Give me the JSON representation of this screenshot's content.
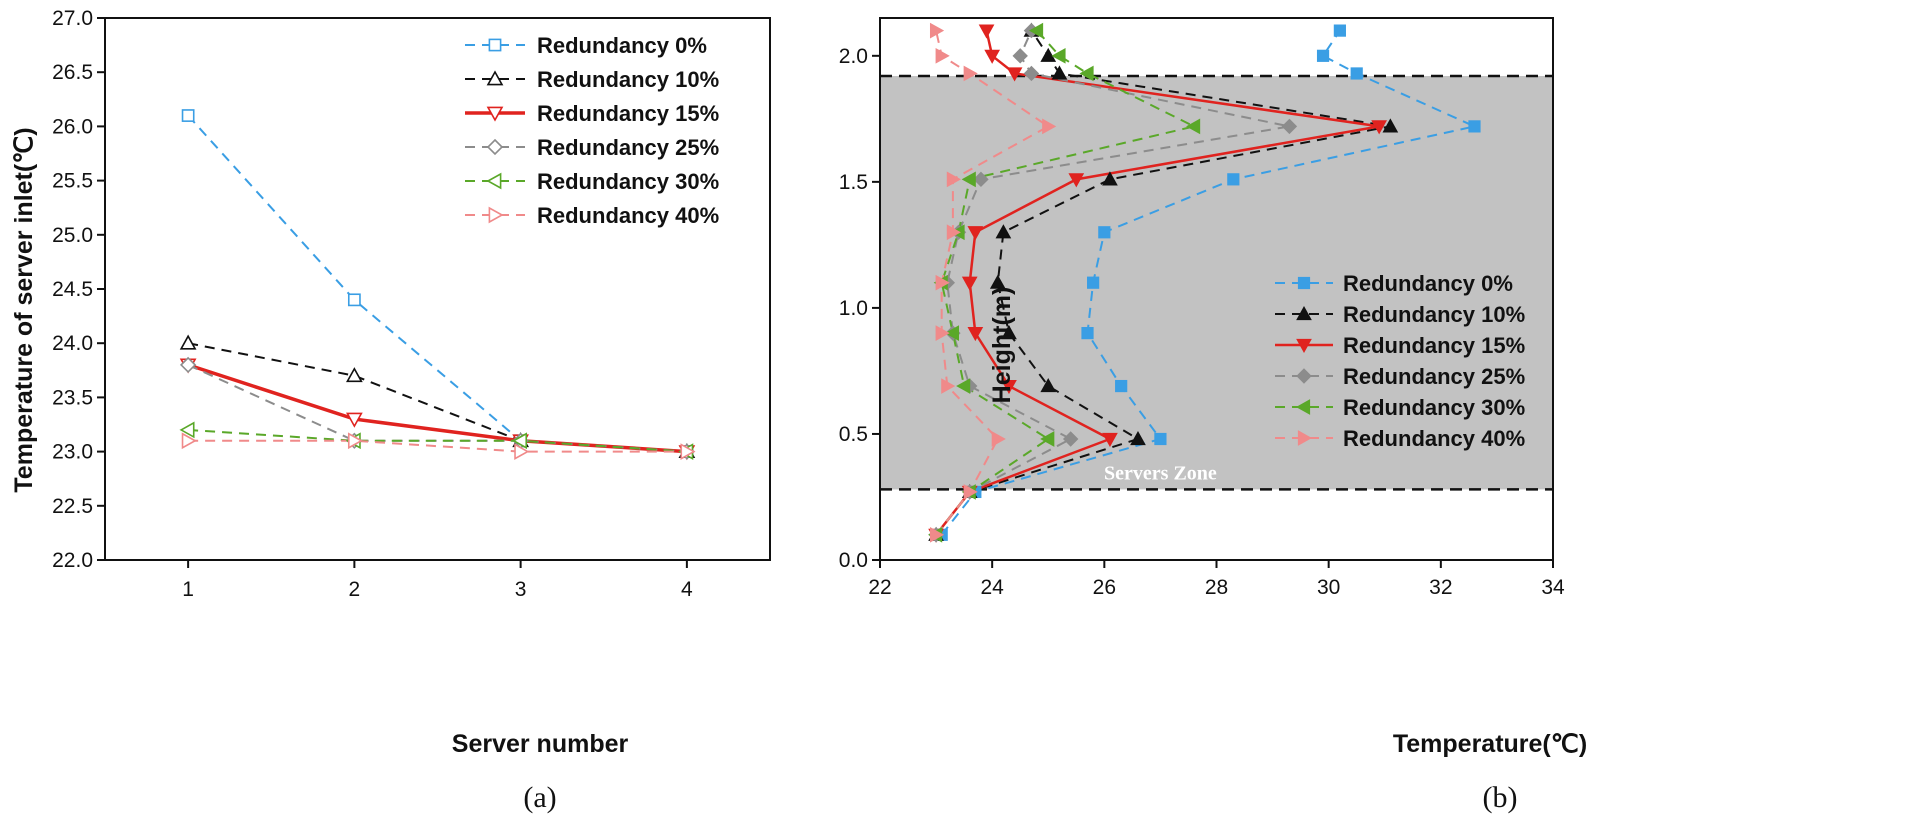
{
  "chart_data": [
    {
      "type": "line",
      "caption": "(a)",
      "xlabel": "Server number",
      "ylabel": "Temperature of server inlet(℃)",
      "xlim": [
        0.5,
        4.5
      ],
      "ylim": [
        22.0,
        27.0
      ],
      "xticks": [
        "1",
        "2",
        "3",
        "4"
      ],
      "yticks": [
        "22.0",
        "22.5",
        "23.0",
        "23.5",
        "24.0",
        "24.5",
        "25.0",
        "25.5",
        "26.0",
        "26.5",
        "27.0"
      ],
      "legend_position": "top-right",
      "x": [
        1,
        2,
        3,
        4
      ],
      "series": [
        {
          "name": "Redundancy 0%",
          "color": "#3a9ee4",
          "marker": "square-open",
          "style": "dashed",
          "values": [
            26.1,
            24.4,
            23.1,
            23.0
          ]
        },
        {
          "name": "Redundancy 10%",
          "color": "#111111",
          "marker": "triangle-up-open",
          "style": "dashed",
          "values": [
            24.0,
            23.7,
            23.1,
            23.0
          ]
        },
        {
          "name": "Redundancy 15%",
          "color": "#e0231f",
          "marker": "triangle-down-open",
          "style": "solid",
          "values": [
            23.8,
            23.3,
            23.1,
            23.0
          ]
        },
        {
          "name": "Redundancy 25%",
          "color": "#8c8c8c",
          "marker": "diamond-open",
          "style": "dashed",
          "values": [
            23.8,
            23.1,
            23.1,
            23.0
          ]
        },
        {
          "name": "Redundancy 30%",
          "color": "#5aa829",
          "marker": "triangle-left-open",
          "style": "dashed",
          "values": [
            23.2,
            23.1,
            23.1,
            23.0
          ]
        },
        {
          "name": "Redundancy 40%",
          "color": "#f08a8a",
          "marker": "triangle-right-open",
          "style": "dashed",
          "values": [
            23.1,
            23.1,
            23.0,
            23.0
          ]
        }
      ]
    },
    {
      "type": "line",
      "caption": "(b)",
      "xlabel": "Temperature(℃)",
      "ylabel": "Height(m)",
      "xlim": [
        22,
        34
      ],
      "ylim": [
        0.0,
        2.15
      ],
      "xticks": [
        "22",
        "24",
        "26",
        "28",
        "30",
        "32",
        "34"
      ],
      "yticks": [
        "0.0",
        "0.5",
        "1.0",
        "1.5",
        "2.0"
      ],
      "legend_position": "bottom-right",
      "zone_label": "Servers Zone",
      "zone_range": [
        0.28,
        1.92
      ],
      "series": [
        {
          "name": "Redundancy 0%",
          "color": "#3a9ee4",
          "marker": "square-filled",
          "style": "dashed",
          "x": [
            23.1,
            23.7,
            27.0,
            26.3,
            25.7,
            25.8,
            26.0,
            28.3,
            32.6,
            30.5,
            29.9,
            30.2
          ],
          "y": [
            0.1,
            0.27,
            0.48,
            0.69,
            0.9,
            1.1,
            1.3,
            1.51,
            1.72,
            1.93,
            2.0,
            2.1
          ]
        },
        {
          "name": "Redundancy 10%",
          "color": "#111111",
          "marker": "triangle-up-filled",
          "style": "dashed",
          "x": [
            23.0,
            23.6,
            26.6,
            25.0,
            24.3,
            24.1,
            24.2,
            26.1,
            31.1,
            25.2,
            25.0,
            24.7
          ],
          "y": [
            0.1,
            0.27,
            0.48,
            0.69,
            0.9,
            1.1,
            1.3,
            1.51,
            1.72,
            1.93,
            2.0,
            2.1
          ]
        },
        {
          "name": "Redundancy 15%",
          "color": "#e0231f",
          "marker": "triangle-down-filled",
          "style": "solid",
          "x": [
            23.0,
            23.6,
            26.1,
            24.3,
            23.7,
            23.6,
            23.7,
            25.5,
            30.9,
            24.4,
            24.0,
            23.9
          ],
          "y": [
            0.1,
            0.27,
            0.48,
            0.69,
            0.9,
            1.1,
            1.3,
            1.51,
            1.72,
            1.93,
            2.0,
            2.1
          ]
        },
        {
          "name": "Redundancy 25%",
          "color": "#8c8c8c",
          "marker": "diamond-filled",
          "style": "dashed",
          "x": [
            23.0,
            23.6,
            25.4,
            23.6,
            23.3,
            23.2,
            23.4,
            23.8,
            29.3,
            24.7,
            24.5,
            24.7
          ],
          "y": [
            0.1,
            0.27,
            0.48,
            0.69,
            0.9,
            1.1,
            1.3,
            1.51,
            1.72,
            1.93,
            2.0,
            2.1
          ]
        },
        {
          "name": "Redundancy 30%",
          "color": "#5aa829",
          "marker": "triangle-left-filled",
          "style": "dashed",
          "x": [
            23.0,
            23.6,
            25.0,
            23.5,
            23.3,
            23.1,
            23.4,
            23.6,
            27.6,
            25.7,
            25.2,
            24.8
          ],
          "y": [
            0.1,
            0.27,
            0.48,
            0.69,
            0.9,
            1.1,
            1.3,
            1.51,
            1.72,
            1.93,
            2.0,
            2.1
          ]
        },
        {
          "name": "Redundancy 40%",
          "color": "#f08a8a",
          "marker": "triangle-right-filled",
          "style": "dashed",
          "x": [
            23.0,
            23.6,
            24.1,
            23.2,
            23.1,
            23.1,
            23.3,
            23.3,
            25.0,
            23.6,
            23.1,
            23.0
          ],
          "y": [
            0.1,
            0.27,
            0.48,
            0.69,
            0.9,
            1.1,
            1.3,
            1.51,
            1.72,
            1.93,
            2.0,
            2.1
          ]
        }
      ]
    }
  ]
}
